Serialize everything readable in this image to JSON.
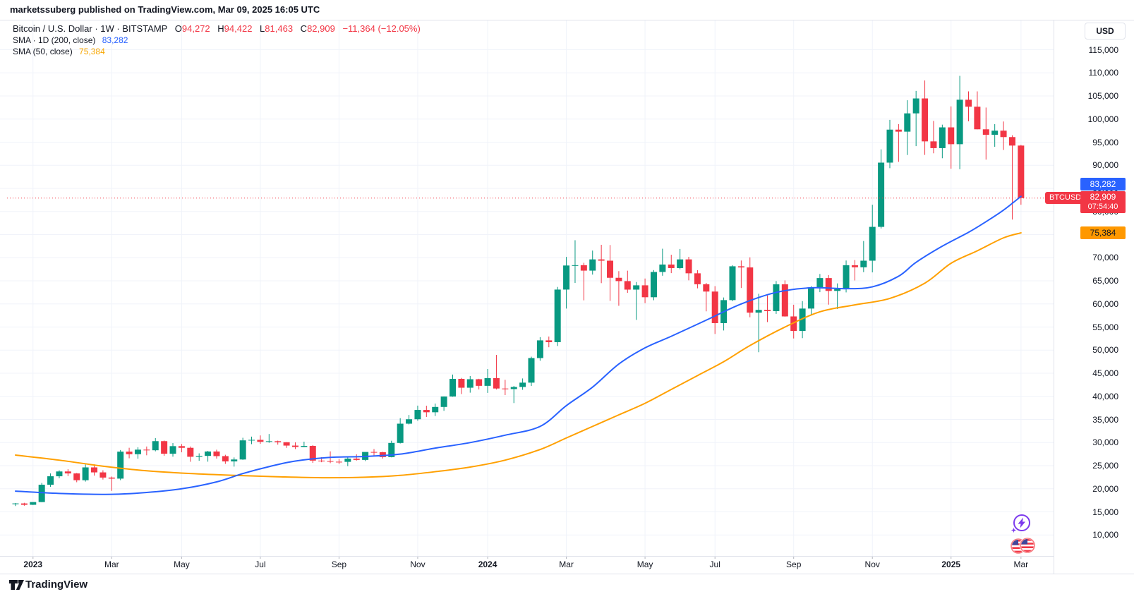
{
  "header": {
    "text": "marketssuberg published on TradingView.com, Mar 09, 2025 16:05 UTC"
  },
  "legend": {
    "title": "Bitcoin / U.S. Dollar · 1W · BITSTAMP",
    "ohlc": {
      "o_label": "O",
      "o": "94,272",
      "h_label": "H",
      "h": "94,422",
      "l_label": "L",
      "l": "81,463",
      "c_label": "C",
      "c": "82,909",
      "change": "−11,364 (−12.05%)"
    },
    "sma200": {
      "label": "SMA · 1D (200, close)",
      "value": "83,282"
    },
    "sma50": {
      "label": "SMA (50, close)",
      "value": "75,384"
    }
  },
  "price_scale": {
    "currency": "USD",
    "tags": {
      "sma200": "83,282",
      "symbol": "BTCUSD",
      "price": "82,909",
      "countdown": "07:54:40",
      "sma50": "75,384"
    }
  },
  "footer": {
    "brand": "TradingView"
  },
  "colors": {
    "up": "#089981",
    "down": "#f23645",
    "sma200": "#2962ff",
    "sma50": "#ffa000",
    "grid": "#f0f3fa",
    "axis_border": "#e0e3eb",
    "text": "#131722",
    "tick": "#b2b5be"
  },
  "chart_data": {
    "type": "candlestick",
    "title": "Bitcoin / U.S. Dollar",
    "symbol": "BTCUSD",
    "exchange": "BITSTAMP",
    "interval": "1W",
    "ylabel": "USD",
    "grid": true,
    "y_ticks": [
      10000,
      15000,
      20000,
      25000,
      30000,
      35000,
      40000,
      45000,
      50000,
      55000,
      60000,
      65000,
      70000,
      75000,
      80000,
      85000,
      90000,
      95000,
      100000,
      105000,
      110000,
      115000
    ],
    "y_axis_range": [
      5470,
      121500
    ],
    "x_ticks": [
      {
        "label": "2023",
        "index": 2,
        "bold": true
      },
      {
        "label": "Mar",
        "index": 11,
        "bold": false
      },
      {
        "label": "May",
        "index": 19,
        "bold": false
      },
      {
        "label": "Jul",
        "index": 28,
        "bold": false
      },
      {
        "label": "Sep",
        "index": 37,
        "bold": false
      },
      {
        "label": "Nov",
        "index": 46,
        "bold": false
      },
      {
        "label": "2024",
        "index": 54,
        "bold": true
      },
      {
        "label": "Mar",
        "index": 63,
        "bold": false
      },
      {
        "label": "May",
        "index": 72,
        "bold": false
      },
      {
        "label": "Jul",
        "index": 80,
        "bold": false
      },
      {
        "label": "Sep",
        "index": 89,
        "bold": false
      },
      {
        "label": "Nov",
        "index": 98,
        "bold": false
      },
      {
        "label": "2025",
        "index": 107,
        "bold": true
      },
      {
        "label": "Mar",
        "index": 115,
        "bold": false
      }
    ],
    "current_price": 82909,
    "current_candle": {
      "open": 94272,
      "high": 94422,
      "low": 81463,
      "close": 82909,
      "change": -11364,
      "change_pct": -12.05
    },
    "sma200d_value": 83282,
    "sma50w_value": 75384,
    "candles": [
      [
        16750,
        16920,
        16260,
        16830
      ],
      [
        16830,
        16970,
        16330,
        16540
      ],
      [
        16540,
        17040,
        16490,
        17130
      ],
      [
        17130,
        21270,
        17120,
        20880
      ],
      [
        20880,
        23330,
        20410,
        22710
      ],
      [
        22710,
        24000,
        22290,
        23750
      ],
      [
        23750,
        24240,
        22740,
        23330
      ],
      [
        23330,
        23420,
        21420,
        21860
      ],
      [
        21860,
        25250,
        21560,
        24630
      ],
      [
        24630,
        25300,
        22850,
        23550
      ],
      [
        23550,
        24000,
        22000,
        22430
      ],
      [
        22430,
        22650,
        19550,
        22200
      ],
      [
        22200,
        28390,
        21870,
        28040
      ],
      [
        28040,
        28880,
        26600,
        27490
      ],
      [
        27490,
        29000,
        26510,
        28470
      ],
      [
        28470,
        29150,
        27250,
        28340
      ],
      [
        28340,
        30980,
        28110,
        30310
      ],
      [
        30310,
        30450,
        27150,
        27590
      ],
      [
        27590,
        29890,
        26950,
        29230
      ],
      [
        29230,
        29690,
        27900,
        28870
      ],
      [
        28870,
        29150,
        25850,
        26930
      ],
      [
        26930,
        27670,
        26070,
        27120
      ],
      [
        27120,
        28200,
        25870,
        28070
      ],
      [
        28070,
        28460,
        26540,
        27070
      ],
      [
        27070,
        27360,
        25390,
        25930
      ],
      [
        25930,
        26790,
        24800,
        26340
      ],
      [
        26340,
        31040,
        26260,
        30480
      ],
      [
        30480,
        31290,
        29660,
        30590
      ],
      [
        30590,
        31550,
        29730,
        30170
      ],
      [
        30170,
        31850,
        29950,
        30300
      ],
      [
        30300,
        30430,
        29550,
        30080
      ],
      [
        30080,
        30100,
        28860,
        29350
      ],
      [
        29350,
        30050,
        28600,
        29050
      ],
      [
        29050,
        30200,
        29000,
        29280
      ],
      [
        29280,
        29450,
        25600,
        26100
      ],
      [
        26100,
        26850,
        25750,
        26000
      ],
      [
        26000,
        28100,
        25550,
        25860
      ],
      [
        25860,
        26450,
        25350,
        25830
      ],
      [
        25830,
        26850,
        24900,
        26530
      ],
      [
        26530,
        27450,
        26100,
        26250
      ],
      [
        26250,
        27300,
        26000,
        27970
      ],
      [
        27970,
        28600,
        27200,
        27920
      ],
      [
        27920,
        28000,
        26550,
        26860
      ],
      [
        26860,
        30400,
        26800,
        29920
      ],
      [
        29920,
        35280,
        29800,
        34090
      ],
      [
        34090,
        35980,
        33930,
        35050
      ],
      [
        35050,
        38000,
        34720,
        37060
      ],
      [
        37060,
        37980,
        35550,
        36560
      ],
      [
        36560,
        38450,
        35750,
        37710
      ],
      [
        37710,
        39990,
        36870,
        39970
      ],
      [
        39970,
        44730,
        39920,
        43790
      ],
      [
        43790,
        43990,
        40500,
        41870
      ],
      [
        41870,
        44400,
        40800,
        43710
      ],
      [
        43710,
        43810,
        41500,
        42280
      ],
      [
        42280,
        45930,
        40750,
        43950
      ],
      [
        43950,
        48970,
        41500,
        41700
      ],
      [
        41700,
        43580,
        40280,
        41580
      ],
      [
        41580,
        42250,
        38550,
        42030
      ],
      [
        42030,
        43880,
        41420,
        42970
      ],
      [
        42970,
        48590,
        42260,
        48290
      ],
      [
        48290,
        52820,
        47710,
        52120
      ],
      [
        52120,
        52950,
        50630,
        51730
      ],
      [
        51730,
        63680,
        50900,
        63110
      ],
      [
        63110,
        70180,
        59000,
        68320
      ],
      [
        68320,
        73790,
        64550,
        68390
      ],
      [
        68390,
        68900,
        60780,
        67210
      ],
      [
        67210,
        71550,
        66350,
        69640
      ],
      [
        69640,
        72800,
        64500,
        69360
      ],
      [
        69360,
        72750,
        60660,
        65660
      ],
      [
        65660,
        67100,
        59600,
        64940
      ],
      [
        64940,
        67200,
        62400,
        63100
      ],
      [
        63100,
        64750,
        56550,
        64030
      ],
      [
        64030,
        65500,
        60170,
        61450
      ],
      [
        61450,
        67330,
        60800,
        66920
      ],
      [
        66920,
        71950,
        66100,
        68530
      ],
      [
        68530,
        70650,
        66670,
        67760
      ],
      [
        67760,
        71900,
        67500,
        69640
      ],
      [
        69640,
        70200,
        65110,
        66630
      ],
      [
        66630,
        67300,
        63380,
        64260
      ],
      [
        64260,
        64550,
        58400,
        62680
      ],
      [
        62680,
        63850,
        53500,
        55850
      ],
      [
        55850,
        61400,
        54260,
        60830
      ],
      [
        60830,
        68380,
        60600,
        68150
      ],
      [
        68150,
        69400,
        63450,
        67900
      ],
      [
        67900,
        70080,
        57120,
        58120
      ],
      [
        58120,
        62200,
        49550,
        58710
      ],
      [
        58710,
        61850,
        56080,
        58440
      ],
      [
        58440,
        64950,
        57850,
        64250
      ],
      [
        64250,
        65100,
        57250,
        57300
      ],
      [
        57300,
        59830,
        52530,
        54160
      ],
      [
        54160,
        60620,
        52600,
        59000
      ],
      [
        59000,
        63850,
        57490,
        63570
      ],
      [
        63570,
        66480,
        62550,
        65600
      ],
      [
        65600,
        66250,
        59850,
        62820
      ],
      [
        62820,
        64450,
        58900,
        63190
      ],
      [
        63190,
        69400,
        62500,
        68370
      ],
      [
        68370,
        69500,
        65080,
        67930
      ],
      [
        67930,
        73620,
        66880,
        69360
      ],
      [
        69360,
        81460,
        66830,
        76680
      ],
      [
        76680,
        93450,
        76330,
        90580
      ],
      [
        90580,
        99830,
        89380,
        97720
      ],
      [
        97720,
        98900,
        90750,
        97280
      ],
      [
        97280,
        104080,
        92230,
        101240
      ],
      [
        101240,
        106100,
        94150,
        104470
      ],
      [
        104470,
        108360,
        92250,
        95180
      ],
      [
        95180,
        99600,
        92600,
        93720
      ],
      [
        93720,
        98800,
        91530,
        98210
      ],
      [
        98210,
        102750,
        89260,
        94570
      ],
      [
        94570,
        109360,
        89140,
        104190
      ],
      [
        104190,
        106000,
        99530,
        102680
      ],
      [
        102680,
        106000,
        97780,
        97790
      ],
      [
        97790,
        102500,
        91230,
        96610
      ],
      [
        96610,
        98900,
        94000,
        97500
      ],
      [
        97500,
        99480,
        93320,
        96110
      ],
      [
        96110,
        96500,
        78260,
        94270
      ],
      [
        94272,
        94422,
        81463,
        82909
      ]
    ],
    "sma200d": [
      [
        0,
        19500
      ],
      [
        5,
        19000
      ],
      [
        11,
        18800
      ],
      [
        15,
        19200
      ],
      [
        19,
        20000
      ],
      [
        23,
        21500
      ],
      [
        26,
        23300
      ],
      [
        29,
        24800
      ],
      [
        32,
        26000
      ],
      [
        36,
        26800
      ],
      [
        40,
        27000
      ],
      [
        44,
        27500
      ],
      [
        48,
        28800
      ],
      [
        52,
        30000
      ],
      [
        56,
        31600
      ],
      [
        60,
        33500
      ],
      [
        63,
        38000
      ],
      [
        66,
        42000
      ],
      [
        69,
        47000
      ],
      [
        72,
        50500
      ],
      [
        75,
        53000
      ],
      [
        79,
        56500
      ],
      [
        83,
        60000
      ],
      [
        87,
        62500
      ],
      [
        91,
        63500
      ],
      [
        95,
        63300
      ],
      [
        98,
        63700
      ],
      [
        101,
        66000
      ],
      [
        103,
        69000
      ],
      [
        106,
        72500
      ],
      [
        109,
        75500
      ],
      [
        111,
        77800
      ],
      [
        113,
        80300
      ],
      [
        115,
        83282
      ]
    ],
    "sma50w": [
      [
        0,
        27300
      ],
      [
        5,
        26200
      ],
      [
        10,
        24900
      ],
      [
        15,
        23900
      ],
      [
        20,
        23300
      ],
      [
        25,
        22900
      ],
      [
        30,
        22600
      ],
      [
        35,
        22400
      ],
      [
        40,
        22500
      ],
      [
        44,
        22900
      ],
      [
        48,
        23700
      ],
      [
        52,
        24700
      ],
      [
        56,
        26200
      ],
      [
        60,
        28500
      ],
      [
        63,
        31000
      ],
      [
        66,
        33500
      ],
      [
        69,
        36000
      ],
      [
        72,
        38500
      ],
      [
        75,
        41500
      ],
      [
        78,
        44500
      ],
      [
        81,
        47500
      ],
      [
        84,
        51000
      ],
      [
        88,
        55000
      ],
      [
        92,
        58300
      ],
      [
        96,
        59800
      ],
      [
        100,
        61200
      ],
      [
        104,
        64500
      ],
      [
        107,
        68800
      ],
      [
        110,
        71500
      ],
      [
        113,
        74300
      ],
      [
        115,
        75384
      ]
    ]
  }
}
